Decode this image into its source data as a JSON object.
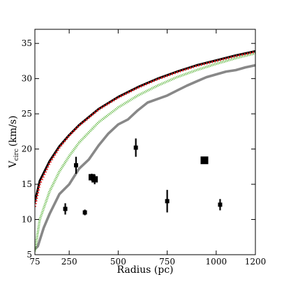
{
  "chart_data": {
    "type": "line",
    "title": "",
    "xlabel": "Radius (pc)",
    "ylabel": {
      "main": "V",
      "subscript": "circ",
      "unit": "(km/s)"
    },
    "xlim": [
      75,
      1200
    ],
    "ylim": [
      5,
      37
    ],
    "xticks": [
      75,
      250,
      500,
      750,
      1000,
      1200
    ],
    "yticks": [
      5,
      10,
      15,
      20,
      25,
      30,
      35
    ],
    "grid": false,
    "series": [
      {
        "style": "solid-black-thick",
        "color": "#000000",
        "x": [
          75,
          100,
          150,
          200,
          250,
          300,
          400,
          500,
          600,
          700,
          800,
          900,
          1000,
          1100,
          1200
        ],
        "y": [
          12.5,
          15.5,
          18.3,
          20.4,
          22.0,
          23.4,
          25.7,
          27.4,
          28.8,
          30.0,
          31.0,
          31.9,
          32.6,
          33.3,
          33.9
        ]
      },
      {
        "style": "dotted-red",
        "color": "#e41a1c",
        "x": [
          75,
          100,
          150,
          200,
          250,
          300,
          400,
          500,
          600,
          700,
          800,
          900,
          1000,
          1100,
          1200
        ],
        "y": [
          11.8,
          15.0,
          18.0,
          20.2,
          21.9,
          23.3,
          25.6,
          27.3,
          28.7,
          29.9,
          30.9,
          31.8,
          32.5,
          33.2,
          33.8
        ]
      },
      {
        "style": "hatched-green",
        "color": "#4daf2a",
        "x": [
          75,
          100,
          150,
          200,
          250,
          300,
          400,
          500,
          600,
          700,
          800,
          900,
          1000,
          1100,
          1200
        ],
        "y": [
          5.5,
          10.0,
          14.0,
          16.8,
          19.0,
          20.9,
          23.8,
          25.9,
          27.6,
          29.0,
          30.2,
          31.2,
          32.1,
          32.9,
          33.6
        ]
      },
      {
        "style": "solid-gray-thick",
        "color": "#888888",
        "x": [
          75,
          90,
          120,
          150,
          200,
          250,
          300,
          350,
          400,
          450,
          500,
          550,
          600,
          650,
          700,
          750,
          800,
          850,
          900,
          950,
          1000,
          1050,
          1100,
          1150,
          1200
        ],
        "y": [
          5.8,
          6.2,
          8.8,
          10.8,
          13.6,
          15.0,
          17.2,
          18.5,
          20.5,
          22.2,
          23.5,
          24.2,
          25.5,
          26.6,
          27.1,
          27.6,
          28.3,
          29.0,
          29.6,
          30.2,
          30.6,
          31.0,
          31.2,
          31.6,
          31.9
        ]
      }
    ],
    "points": [
      {
        "x": 230,
        "y": 11.5,
        "err": 0.8,
        "size": "small"
      },
      {
        "x": 285,
        "y": 17.7,
        "err": 1.2,
        "size": "small"
      },
      {
        "x": 330,
        "y": 11.0,
        "err": 0.4,
        "size": "small"
      },
      {
        "x": 365,
        "y": 16.0,
        "err": 0.5,
        "size": "medium"
      },
      {
        "x": 380,
        "y": 15.7,
        "err": 0.7,
        "size": "medium"
      },
      {
        "x": 590,
        "y": 20.2,
        "err": 1.3,
        "size": "small"
      },
      {
        "x": 750,
        "y": 12.6,
        "err": 1.6,
        "size": "small"
      },
      {
        "x": 940,
        "y": 18.4,
        "err": 0.3,
        "size": "large"
      },
      {
        "x": 1020,
        "y": 12.1,
        "err": 0.8,
        "size": "small"
      }
    ]
  }
}
